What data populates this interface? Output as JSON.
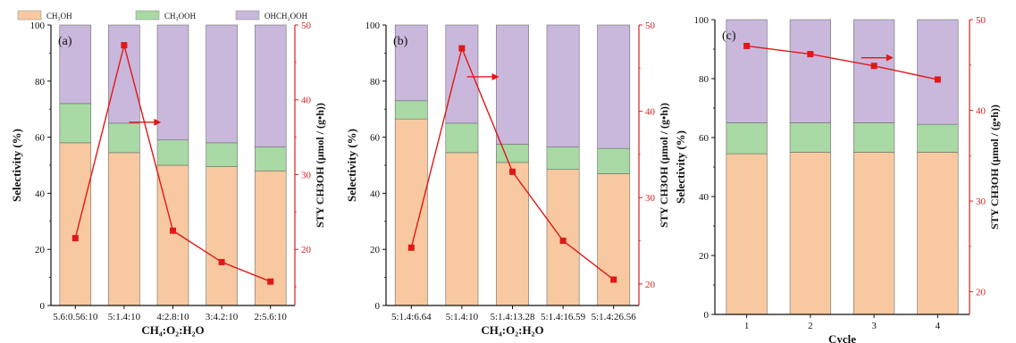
{
  "legend": [
    {
      "label": "CH₃OH",
      "color": "#f8c9a0"
    },
    {
      "label": "CH₃OOH",
      "color": "#a9d9a4"
    },
    {
      "label": "OHCH₂OOH",
      "color": "#c9b8dc"
    }
  ],
  "colors": {
    "stack": [
      "#f8c9a0",
      "#a9d9a4",
      "#c9b8dc"
    ],
    "line": "#e01818",
    "right_axis": "#d62020"
  },
  "chart_data": [
    {
      "type": "bar",
      "panel_label": "(a)",
      "categories": [
        "5.6:0.56:10",
        "5:1.4:10",
        "4:2.8:10",
        "3:4.2:10",
        "2:5.6:10"
      ],
      "series": [
        {
          "name": "CH₃OH",
          "values": [
            58,
            54.5,
            50,
            49.5,
            48
          ]
        },
        {
          "name": "CH₃OOH",
          "values": [
            14,
            10.5,
            9,
            8.5,
            8.5
          ]
        },
        {
          "name": "OHCH₂OOH",
          "values": [
            28,
            35,
            41,
            42,
            43.5
          ]
        }
      ],
      "line": {
        "values": [
          21.5,
          47.3,
          22.5,
          18.3,
          15.7
        ]
      },
      "xlabel": "CH₄:O₂:H₂O",
      "ylabel": "Selectivity (%)",
      "y2label": "STY CH3OH (μmol / (g•h))",
      "ylim": [
        0,
        100
      ],
      "yticks": [
        0,
        20,
        40,
        60,
        80,
        100
      ],
      "y2lim": [
        12.5,
        50
      ],
      "y2ticks": [
        20,
        30,
        40,
        50
      ],
      "arrow": {
        "x": 1.6,
        "y": 37
      }
    },
    {
      "type": "bar",
      "panel_label": "(b)",
      "categories": [
        "5:1.4:6.64",
        "5:1.4:10",
        "5:1.4:13.28",
        "5:1.4:16.59",
        "5:1.4:26.56"
      ],
      "series": [
        {
          "name": "CH₃OH",
          "values": [
            66.5,
            54.5,
            51,
            48.5,
            47
          ]
        },
        {
          "name": "CH₃OOH",
          "values": [
            6.5,
            10.5,
            6.5,
            8,
            9
          ]
        },
        {
          "name": "OHCH₂OOH",
          "values": [
            27,
            35,
            42.5,
            43.5,
            44
          ]
        }
      ],
      "line": {
        "values": [
          24.2,
          47.3,
          33,
          25,
          20.5
        ]
      },
      "xlabel": "CH₄:O₂:H₂O",
      "ylabel": "Selectivity (%)",
      "y2label": "STY CH3OH (μmol / (g•h))",
      "ylim": [
        0,
        100
      ],
      "yticks": [
        0,
        20,
        40,
        60,
        80,
        100
      ],
      "y2lim": [
        17.5,
        50
      ],
      "y2ticks": [
        20,
        30,
        40,
        50
      ],
      "arrow": {
        "x": 1.6,
        "y": 44
      }
    },
    {
      "type": "bar",
      "panel_label": "(c)",
      "categories": [
        "1",
        "2",
        "3",
        "4"
      ],
      "series": [
        {
          "name": "CH₃OH",
          "values": [
            54.5,
            55,
            55,
            55
          ]
        },
        {
          "name": "CH₃OOH",
          "values": [
            10.5,
            10,
            10,
            9.5
          ]
        },
        {
          "name": "OHCH₂OOH",
          "values": [
            35,
            35,
            35,
            35.5
          ]
        }
      ],
      "line": {
        "values": [
          47.1,
          46.2,
          44.9,
          43.4
        ]
      },
      "xlabel": "Cycle",
      "ylabel": "Selectivity (%)",
      "y2label": "STY CH3OH (μmol / (g•h))",
      "ylim": [
        0,
        100
      ],
      "yticks": [
        0,
        20,
        40,
        60,
        80,
        100
      ],
      "y2lim": [
        17.5,
        50
      ],
      "y2ticks": [
        20,
        30,
        40,
        50
      ],
      "arrow": {
        "x": 2.3,
        "y": 45.8
      }
    }
  ]
}
